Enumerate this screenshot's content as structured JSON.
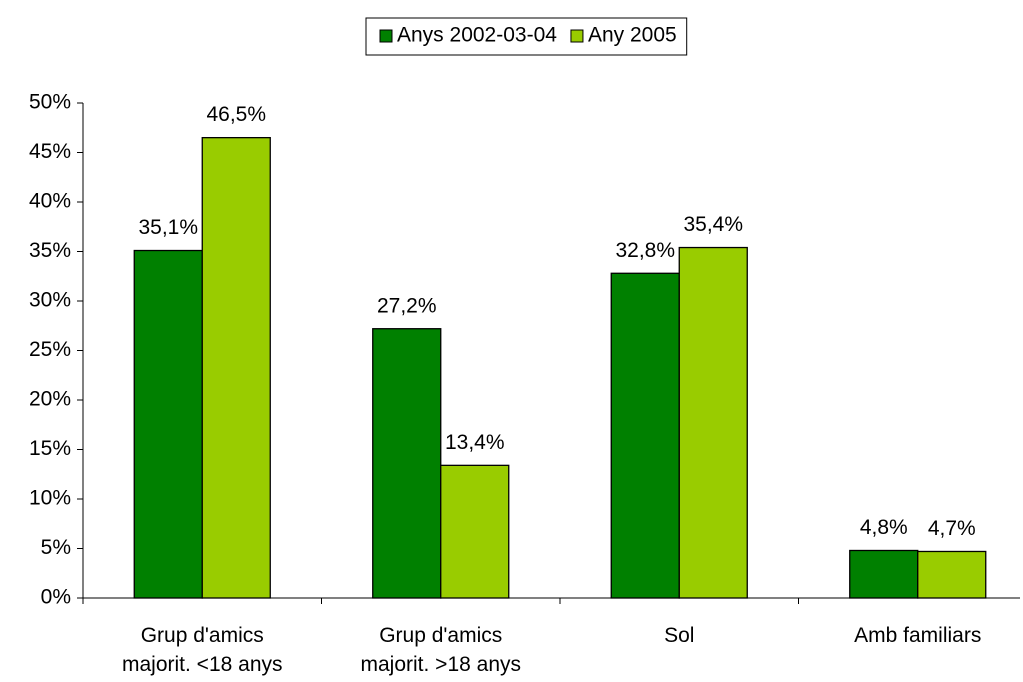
{
  "chart_data": {
    "type": "bar",
    "categories": [
      "Grup d'amics\nmajorit. <18 anys",
      "Grup d'amics\nmajorit. >18 anys",
      "Sol",
      "Amb familiars"
    ],
    "series": [
      {
        "name": "Anys 2002-03-04",
        "color": "#008000",
        "values": [
          35.1,
          27.2,
          32.8,
          4.8
        ],
        "value_labels": [
          "35,1%",
          "27,2%",
          "32,8%",
          "4,8%"
        ]
      },
      {
        "name": "Any 2005",
        "color": "#99cc00",
        "values": [
          46.5,
          13.4,
          35.4,
          4.7
        ],
        "value_labels": [
          "46,5%",
          "13,4%",
          "35,4%",
          "4,7%"
        ]
      }
    ],
    "ylim": [
      0,
      50
    ],
    "yticks": [
      {
        "value": 0,
        "label": "0%"
      },
      {
        "value": 5,
        "label": "5%"
      },
      {
        "value": 10,
        "label": "10%"
      },
      {
        "value": 15,
        "label": "15%"
      },
      {
        "value": 20,
        "label": "20%"
      },
      {
        "value": 25,
        "label": "25%"
      },
      {
        "value": 30,
        "label": "30%"
      },
      {
        "value": 35,
        "label": "35%"
      },
      {
        "value": 40,
        "label": "40%"
      },
      {
        "value": 45,
        "label": "45%"
      },
      {
        "value": 50,
        "label": "50%"
      }
    ],
    "legend": "top"
  }
}
